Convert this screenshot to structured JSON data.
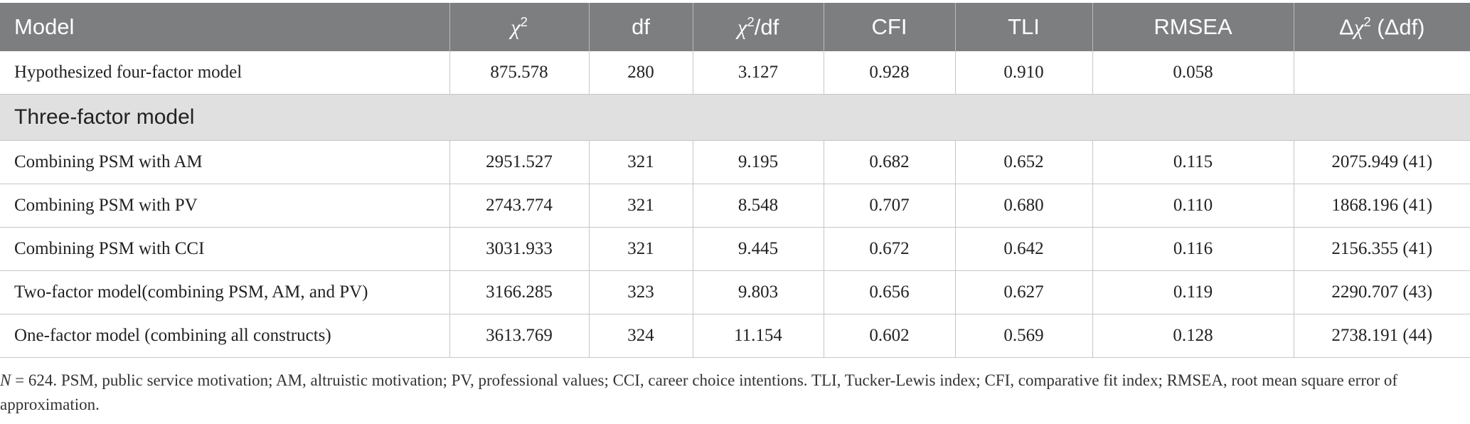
{
  "table": {
    "headers": {
      "model": "Model",
      "chi2_sym": "χ",
      "chi2_exp": "2",
      "df": "df",
      "ratio_sym": "χ",
      "ratio_exp": "2",
      "ratio_rest": "/df",
      "cfi": "CFI",
      "tli": "TLI",
      "rmsea": "RMSEA",
      "delta_pre": "Δ",
      "delta_sym": "χ",
      "delta_exp": "2",
      "delta_post": " (Δdf)"
    },
    "rows": [
      {
        "model": "Hypothesized four-factor model",
        "chi2": "875.578",
        "df": "280",
        "ratio": "3.127",
        "cfi": "0.928",
        "tli": "0.910",
        "rmsea": "0.058",
        "delta": ""
      },
      {
        "model": "Combining PSM with AM",
        "chi2": "2951.527",
        "df": "321",
        "ratio": "9.195",
        "cfi": "0.682",
        "tli": "0.652",
        "rmsea": "0.115",
        "delta": "2075.949 (41)"
      },
      {
        "model": "Combining PSM with PV",
        "chi2": "2743.774",
        "df": "321",
        "ratio": "8.548",
        "cfi": "0.707",
        "tli": "0.680",
        "rmsea": "0.110",
        "delta": "1868.196 (41)"
      },
      {
        "model": "Combining PSM with CCI",
        "chi2": "3031.933",
        "df": "321",
        "ratio": "9.445",
        "cfi": "0.672",
        "tli": "0.642",
        "rmsea": "0.116",
        "delta": "2156.355 (41)"
      },
      {
        "model": "Two-factor model(combining PSM, AM, and PV)",
        "chi2": "3166.285",
        "df": "323",
        "ratio": "9.803",
        "cfi": "0.656",
        "tli": "0.627",
        "rmsea": "0.119",
        "delta": "2290.707 (43)"
      },
      {
        "model": "One-factor model (combining all constructs)",
        "chi2": "3613.769",
        "df": "324",
        "ratio": "11.154",
        "cfi": "0.602",
        "tli": "0.569",
        "rmsea": "0.128",
        "delta": "2738.191 (44)"
      }
    ],
    "section_label": "Three-factor model"
  },
  "note": {
    "n_symbol": "N",
    "text": " = 624. PSM, public service motivation; AM, altruistic motivation; PV, professional values; CCI, career choice intentions. TLI, Tucker-Lewis index; CFI, comparative fit index; RMSEA, root mean square error of approximation."
  }
}
